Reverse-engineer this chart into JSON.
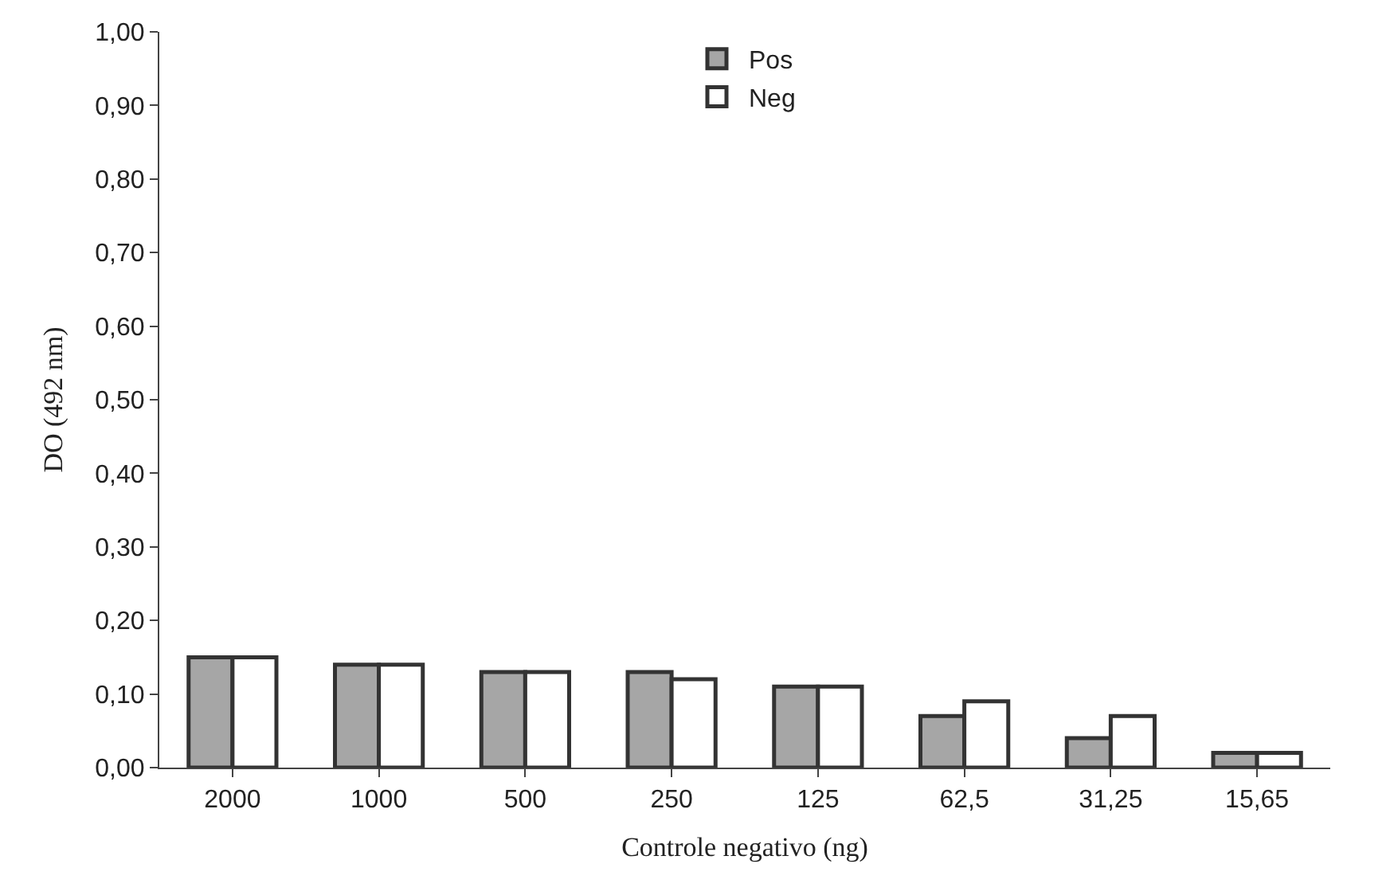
{
  "chart_data": {
    "type": "bar",
    "xlabel": "Controle negativo (ng)",
    "ylabel": "DO (492 nm)",
    "categories": [
      "2000",
      "1000",
      "500",
      "250",
      "125",
      "62,5",
      "31,25",
      "15,65"
    ],
    "series": [
      {
        "name": "Pos",
        "color": "#a6a6a6",
        "values": [
          0.15,
          0.14,
          0.13,
          0.13,
          0.11,
          0.07,
          0.04,
          0.02
        ]
      },
      {
        "name": "Neg",
        "color": "#ffffff",
        "values": [
          0.15,
          0.14,
          0.13,
          0.12,
          0.11,
          0.09,
          0.07,
          0.02
        ]
      }
    ],
    "ylim": [
      0,
      1
    ],
    "yticks": [
      {
        "value": 0,
        "label": "0,00"
      },
      {
        "value": 0.1,
        "label": "0,10"
      },
      {
        "value": 0.2,
        "label": "0,20"
      },
      {
        "value": 0.3,
        "label": "0,30"
      },
      {
        "value": 0.4,
        "label": "0,40"
      },
      {
        "value": 0.5,
        "label": "0,50"
      },
      {
        "value": 0.6,
        "label": "0,60"
      },
      {
        "value": 0.7,
        "label": "0,70"
      },
      {
        "value": 0.8,
        "label": "0,80"
      },
      {
        "value": 0.9,
        "label": "0,90"
      },
      {
        "value": 1,
        "label": "1,00"
      }
    ],
    "legend": "top"
  }
}
